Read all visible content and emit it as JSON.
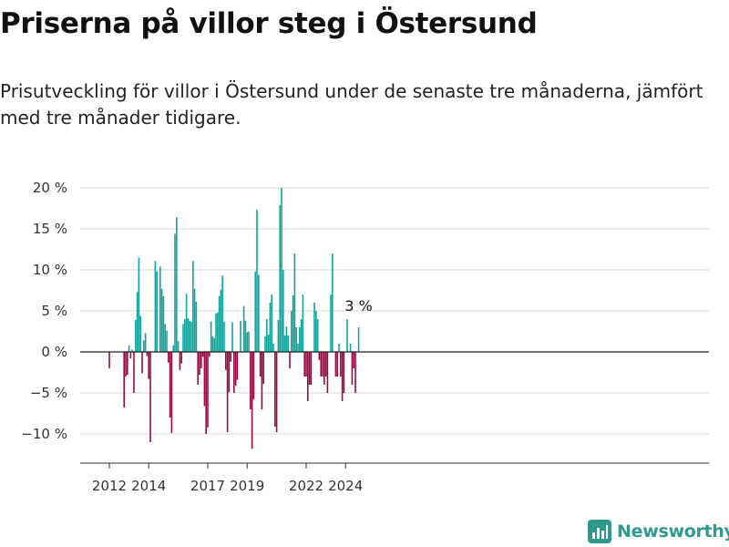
{
  "title": "Priserna på villor steg i Östersund",
  "subtitle": "Prisutveckling för villor i Östersund under de senaste tre månaderna, jämfört med tre månader tidigare.",
  "brand": {
    "name": "Newsworthy",
    "icon": "bar-chart-logo-icon"
  },
  "colors": {
    "positive": "#14a39a",
    "negative": "#9a0b46",
    "grid": "#d9d9d9",
    "axis": "#333333",
    "brand": "#2e9a8c"
  },
  "chart_data": {
    "type": "bar",
    "ylabel": "",
    "xlabel": "",
    "ylim": [
      -13.5,
      21
    ],
    "yticks": [
      {
        "value": 20,
        "label": "20 %"
      },
      {
        "value": 15,
        "label": "15 %"
      },
      {
        "value": 10,
        "label": "10 %"
      },
      {
        "value": 5,
        "label": "5 %"
      },
      {
        "value": 0,
        "label": "0 %"
      },
      {
        "value": -5,
        "label": "−5 %"
      },
      {
        "value": -10,
        "label": "−10 %"
      }
    ],
    "xticks": [
      {
        "index": 0,
        "label": "2012"
      },
      {
        "index": 24,
        "label": "2014"
      },
      {
        "index": 60,
        "label": "2017"
      },
      {
        "index": 84,
        "label": "2019"
      },
      {
        "index": 120,
        "label": "2022"
      },
      {
        "index": 144,
        "label": "2024"
      }
    ],
    "start": "2012-01",
    "end": "2024-08",
    "values": [
      -2.0,
      0,
      0,
      0,
      0,
      0,
      0,
      0,
      0,
      -6.8,
      -3.0,
      -2.8,
      0.8,
      -0.8,
      0.3,
      -5.0,
      3.9,
      7.3,
      11.5,
      4.4,
      -2.6,
      1.4,
      2.3,
      -0.5,
      -3.3,
      -11.0,
      0,
      0,
      11.1,
      9.8,
      0,
      10.4,
      7.7,
      6.8,
      3.4,
      2.6,
      -1.3,
      -8.0,
      -9.9,
      0.8,
      14.4,
      16.4,
      1.3,
      -2.2,
      -1.4,
      3.4,
      4.0,
      7.1,
      4.1,
      3.8,
      3.7,
      11.1,
      7.7,
      6.1,
      -4.0,
      -2.8,
      -2.0,
      -0.6,
      -6.6,
      -10.0,
      -9.2,
      -0.6,
      3.7,
      1.9,
      1.7,
      4.7,
      4.8,
      6.8,
      7.6,
      9.3,
      3.7,
      -2.2,
      -9.8,
      -4.9,
      -1.2,
      3.6,
      -5.0,
      -4.1,
      -3.4,
      0,
      3.8,
      0,
      5.6,
      3.8,
      2.4,
      2.5,
      -7.0,
      -11.8,
      -5.8,
      9.8,
      17.3,
      9.4,
      -3.0,
      -7.0,
      -3.9,
      1.9,
      4.0,
      2.1,
      6.0,
      7.0,
      1.0,
      -9.1,
      -9.8,
      3.9,
      17.9,
      20.0,
      10.0,
      2.0,
      3.1,
      2.0,
      -2.0,
      5.0,
      6.9,
      12.0,
      3.0,
      1.0,
      3.0,
      4.0,
      7.0,
      -3.0,
      -3.0,
      -6.0,
      -4.0,
      -4.0,
      0,
      6.0,
      5.0,
      4.0,
      -1.0,
      -3.0,
      -3.0,
      -4.0,
      -3.0,
      -5.0,
      0,
      7.0,
      12.0,
      0,
      -3.0,
      -3.0,
      1.0,
      -3.0,
      -6.0,
      -5.0,
      0,
      4.0,
      0,
      1.0,
      -4.0,
      -2.0,
      -5.0,
      0,
      3.0
    ],
    "annotation": {
      "label": "3 %"
    }
  }
}
